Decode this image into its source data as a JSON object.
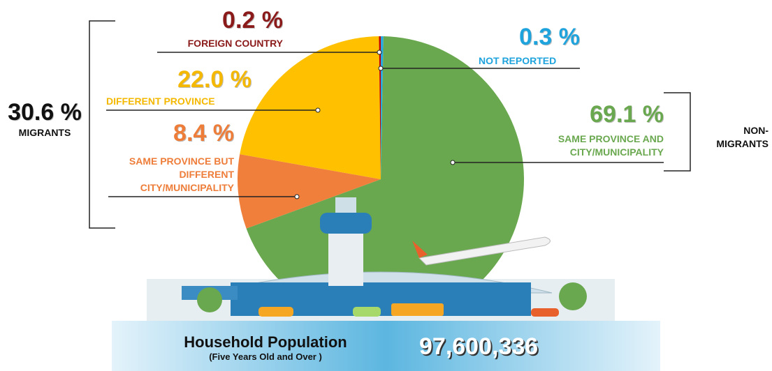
{
  "chart_data": {
    "type": "pie",
    "categories": [
      "NOT REPORTED",
      "SAME PROVINCE AND CITY/MUNICIPALITY",
      "SAME PROVINCE BUT DIFFERENT CITY/MUNICIPALITY",
      "DIFFERENT PROVINCE",
      "FOREIGN COUNTRY"
    ],
    "values": [
      0.3,
      69.1,
      8.4,
      22.0,
      0.2
    ],
    "value_labels": [
      "0.3 %",
      "69.1 %",
      "8.4 %",
      "22.0 %",
      "0.2 %"
    ],
    "colors": [
      "#29a8e0",
      "#6aa84f",
      "#f07f3c",
      "#ffc000",
      "#c00000"
    ],
    "label_colors": [
      "#1fa3dd",
      "#6aa84f",
      "#ee7d3a",
      "#f5b800",
      "#8b1a1a"
    ],
    "groups": [
      {
        "label": "30.6 %",
        "name": "MIGRANTS"
      },
      {
        "name": "NON-MIGRANTS"
      }
    ]
  },
  "footer": {
    "title": "Household Population",
    "subtitle": "(Five Years Old and Over )",
    "total": "97,600,336"
  }
}
